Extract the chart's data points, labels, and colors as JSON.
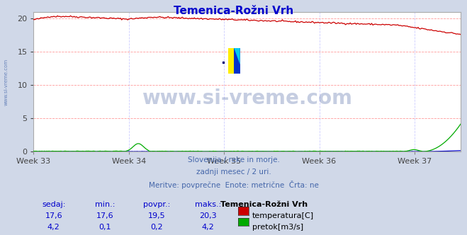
{
  "title": "Temenica-Rožni Vrh",
  "title_color": "#0000cc",
  "bg_color": "#d0d8e8",
  "plot_bg_color": "#ffffff",
  "grid_color_h": "#ff9999",
  "grid_color_v": "#ccccff",
  "x_tick_labels": [
    "Week 33",
    "Week 34",
    "Week 35",
    "Week 36",
    "Week 37"
  ],
  "n_points": 360,
  "ylim": [
    0,
    21
  ],
  "yticks": [
    0,
    5,
    10,
    15,
    20
  ],
  "temp_color": "#cc0000",
  "flow_color": "#00aa00",
  "height_color": "#0000cc",
  "watermark_text": "www.si-vreme.com",
  "watermark_color": "#1a3a8a",
  "watermark_alpha": 0.25,
  "subtitle_lines": [
    "Slovenija / reke in morje.",
    "zadnji mesec / 2 uri.",
    "Meritve: povprečne  Enote: metrične  Črta: ne"
  ],
  "subtitle_color": "#4466aa",
  "table_header": [
    "sedaj:",
    "min.:",
    "povpr.:",
    "maks.:",
    "Temenica-Rožni Vrh"
  ],
  "table_row1": [
    "17,6",
    "17,6",
    "19,5",
    "20,3",
    "temperatura[C]"
  ],
  "table_row2": [
    "4,2",
    "0,1",
    "0,2",
    "4,2",
    "pretok[m3/s]"
  ],
  "table_color": "#0000cc",
  "left_label": "www.si-vreme.com",
  "left_label_color": "#4466aa"
}
